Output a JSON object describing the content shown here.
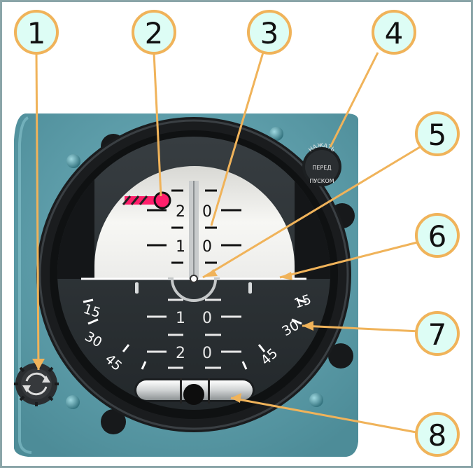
{
  "callouts": [
    "1",
    "2",
    "3",
    "4",
    "5",
    "6",
    "7",
    "8"
  ],
  "colors": {
    "panel": "#5fa0ad",
    "callout_fill": "#ddfdf5",
    "callout_stroke": "#f0b35a",
    "leader": "#f0b35a",
    "sky": "#f2f2ef",
    "ground": "#2f3437",
    "bezel": "#151719",
    "marker": "#ff1f6b"
  },
  "instrument": {
    "pitch_labels": [
      {
        "left": "2",
        "right": "0"
      },
      {
        "left": "1",
        "right": "0"
      },
      {
        "left": "1",
        "right": "0"
      },
      {
        "left": "2",
        "right": "0"
      }
    ],
    "bank_scale_left": [
      "15",
      "30",
      "45"
    ],
    "bank_scale_right": [
      "15",
      "30",
      "45"
    ],
    "cage_knob_text": [
      "НАЖАТЬ",
      "ПЕРЕД",
      "ПУСКОМ"
    ]
  }
}
